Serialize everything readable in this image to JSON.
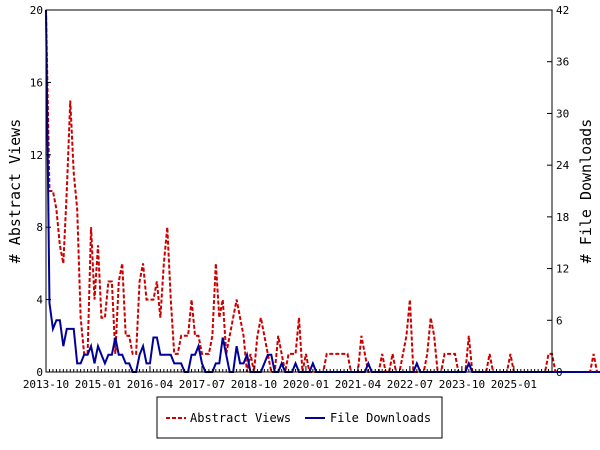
{
  "chart_data": {
    "type": "line",
    "title": "",
    "ylabel_left": "# Abstract Views",
    "ylabel_right": "# File Downloads",
    "x_tick_labels": [
      "2013-10",
      "2015-01",
      "2016-04",
      "2017-07",
      "2018-10",
      "2020-01",
      "2021-04",
      "2022-07",
      "2023-10",
      "2025-01"
    ],
    "x_range": [
      "2013-10",
      "2025-12"
    ],
    "ylim_left": [
      0,
      20
    ],
    "ylim_right": [
      0,
      42
    ],
    "yticks_left": [
      0,
      4,
      8,
      12,
      16,
      20
    ],
    "yticks_right": [
      0,
      6,
      12,
      18,
      24,
      30,
      36,
      42
    ],
    "grid": false,
    "legend_position": "bottom-center",
    "series": [
      {
        "name": "Abstract Views",
        "axis": "left",
        "color": "#cc0000",
        "style": "dashed",
        "values": [
          20,
          10,
          10,
          9,
          7,
          6,
          10,
          15,
          11,
          9,
          3,
          1,
          1,
          8,
          4,
          7,
          3,
          3,
          5,
          5,
          1,
          5,
          6,
          2,
          2,
          1,
          1,
          5,
          6,
          4,
          4,
          4,
          5,
          3,
          6,
          8,
          4,
          1,
          1,
          2,
          2,
          2,
          4,
          2,
          2,
          1,
          1,
          1,
          2,
          6,
          3,
          4,
          1,
          2,
          3,
          4,
          3,
          2,
          0,
          1,
          0,
          2,
          3,
          2,
          1,
          0,
          0,
          2,
          1,
          0,
          1,
          1,
          1,
          3,
          0,
          1,
          0,
          0,
          0,
          0,
          0,
          1,
          1,
          1,
          1,
          1,
          1,
          1,
          0,
          0,
          0,
          2,
          1,
          0,
          0,
          0,
          0,
          1,
          0,
          0,
          1,
          0,
          0,
          1,
          2,
          4,
          0,
          0,
          0,
          0,
          1,
          3,
          2,
          0,
          0,
          1,
          1,
          1,
          1,
          0,
          0,
          0,
          2,
          0,
          0,
          0,
          0,
          0,
          1,
          0,
          0,
          0,
          0,
          0,
          1,
          0,
          0,
          0,
          0,
          0,
          0,
          0,
          0,
          0,
          0,
          1,
          1,
          0,
          0,
          0,
          0,
          0,
          0,
          0,
          0,
          0,
          0,
          0,
          1,
          0,
          0,
          0,
          0,
          0,
          1,
          0,
          0,
          1,
          0,
          0,
          0,
          0,
          0,
          0,
          0,
          1,
          0,
          0,
          0,
          0,
          1,
          0,
          0,
          0,
          0,
          1,
          0,
          0,
          2
        ]
      },
      {
        "name": "File Downloads",
        "axis": "right",
        "color": "#00009a",
        "style": "solid",
        "values": [
          42,
          8,
          5,
          6,
          6,
          3,
          5,
          5,
          5,
          1,
          1,
          2,
          2,
          3,
          1,
          3,
          2,
          1,
          2,
          2,
          4,
          2,
          2,
          1,
          1,
          0,
          0,
          2,
          3,
          1,
          1,
          4,
          4,
          2,
          2,
          2,
          2,
          1,
          1,
          1,
          0,
          0,
          2,
          2,
          3,
          1,
          0,
          0,
          0,
          1,
          1,
          4,
          2,
          0,
          0,
          3,
          1,
          1,
          2,
          0,
          0,
          0,
          0,
          1,
          2,
          2,
          0,
          0,
          1,
          0,
          0,
          0,
          1,
          0,
          0,
          0,
          0,
          1,
          0,
          0,
          0,
          0,
          0,
          0,
          0,
          0,
          0,
          0,
          0,
          0,
          0,
          0,
          0,
          1,
          0,
          0,
          0,
          0,
          0,
          0,
          0,
          0,
          0,
          0,
          0,
          0,
          0,
          1,
          0,
          0,
          0,
          0,
          0,
          0,
          0,
          0,
          0,
          0,
          0,
          0,
          0,
          0,
          1,
          0,
          0,
          0,
          0,
          0,
          0,
          0,
          0,
          0,
          0,
          0,
          0,
          0,
          0,
          0,
          0,
          0,
          0,
          0,
          0,
          0,
          0,
          0,
          0,
          0,
          0,
          0,
          0,
          0,
          0,
          0,
          0,
          0,
          0,
          0,
          0,
          0,
          0,
          1,
          0,
          0,
          0,
          0,
          0,
          0,
          0,
          0,
          0,
          0,
          0,
          0,
          0,
          0,
          0,
          0,
          0,
          0,
          0,
          0,
          0,
          0,
          0,
          0
        ]
      }
    ]
  }
}
